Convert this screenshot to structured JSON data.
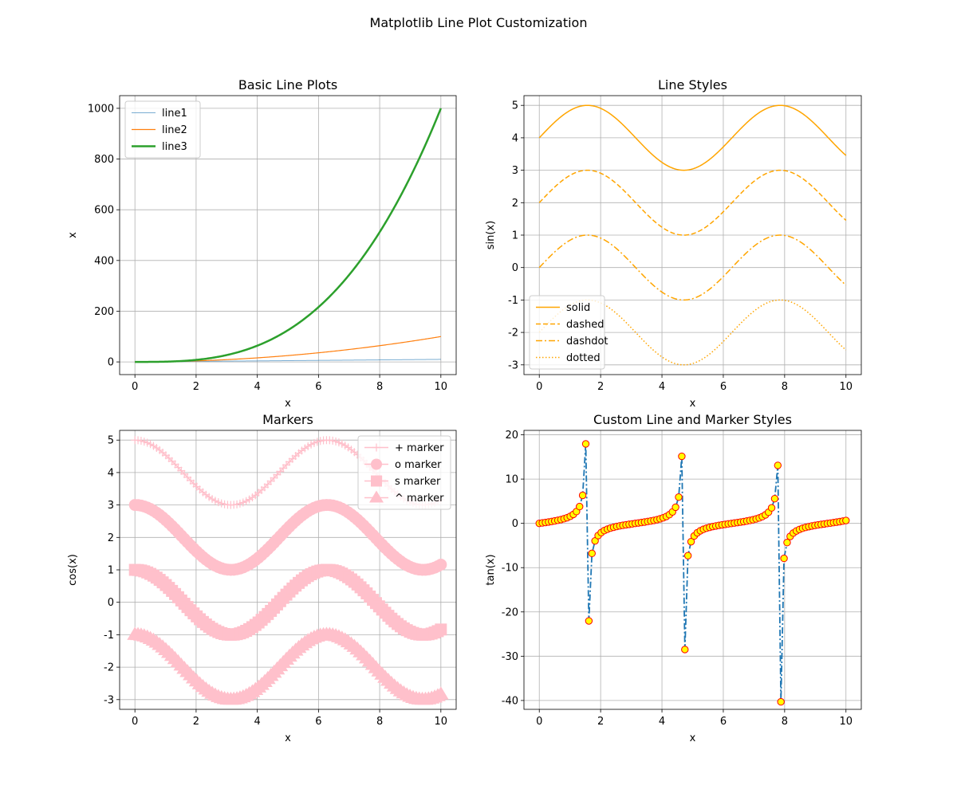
{
  "figure": {
    "title": "Matplotlib Line Plot Customization"
  },
  "chart_data": [
    {
      "type": "line",
      "title": "Basic Line Plots",
      "xlabel": "x",
      "ylabel": "x",
      "xlim": [
        -0.5,
        10.5
      ],
      "ylim": [
        -50,
        1050
      ],
      "xticks": [
        0,
        2,
        4,
        6,
        8,
        10
      ],
      "yticks": [
        0,
        200,
        400,
        600,
        800,
        1000
      ],
      "grid": true,
      "legend": "upper left",
      "x_range": [
        0,
        10
      ],
      "series": [
        {
          "name": "line1",
          "formula": "x",
          "color": "#1f77b4",
          "linewidth": 1,
          "style": "solid",
          "alpha": 0.6
        },
        {
          "name": "line2",
          "formula": "x^2",
          "color": "#ff7f0e",
          "linewidth": 1.2,
          "style": "solid"
        },
        {
          "name": "line3",
          "formula": "x^3",
          "color": "#2ca02c",
          "linewidth": 2.5,
          "style": "solid"
        }
      ]
    },
    {
      "type": "line",
      "title": "Line Styles",
      "xlabel": "x",
      "ylabel": "sin(x)",
      "xlim": [
        -0.5,
        10.5
      ],
      "ylim": [
        -3.3,
        5.3
      ],
      "xticks": [
        0,
        2,
        4,
        6,
        8,
        10
      ],
      "yticks": [
        -3,
        -2,
        -1,
        0,
        1,
        2,
        3,
        4,
        5
      ],
      "grid": true,
      "legend": "lower left",
      "x_range": [
        0,
        10
      ],
      "color": "#ffa500",
      "series": [
        {
          "name": "solid",
          "formula": "sin(x)+4",
          "style": "solid"
        },
        {
          "name": "dashed",
          "formula": "sin(x)+2",
          "style": "dashed"
        },
        {
          "name": "dashdot",
          "formula": "sin(x)",
          "style": "dashdot"
        },
        {
          "name": "dotted",
          "formula": "sin(x)-2",
          "style": "dotted"
        }
      ]
    },
    {
      "type": "line",
      "title": "Markers",
      "xlabel": "x",
      "ylabel": "cos(x)",
      "xlim": [
        -0.5,
        10.5
      ],
      "ylim": [
        -3.3,
        5.3
      ],
      "xticks": [
        0,
        2,
        4,
        6,
        8,
        10
      ],
      "yticks": [
        -3,
        -2,
        -1,
        0,
        1,
        2,
        3,
        4,
        5
      ],
      "grid": true,
      "legend": "upper right",
      "x_range": [
        0,
        10
      ],
      "color": "#ffc0cb",
      "series": [
        {
          "name": "+ marker",
          "formula": "cos(x)+4",
          "marker": "+"
        },
        {
          "name": "o marker",
          "formula": "cos(x)+2",
          "marker": "o"
        },
        {
          "name": "s marker",
          "formula": "cos(x)",
          "marker": "s"
        },
        {
          "name": "^ marker",
          "formula": "cos(x)-2",
          "marker": "^"
        }
      ]
    },
    {
      "type": "line",
      "title": "Custom Line and Marker Styles",
      "xlabel": "x",
      "ylabel": "tan(x)",
      "xlim": [
        -0.5,
        10.5
      ],
      "ylim": [
        -42,
        21
      ],
      "xticks": [
        0,
        2,
        4,
        6,
        8,
        10
      ],
      "yticks": [
        -40,
        -30,
        -20,
        -10,
        0,
        10,
        20
      ],
      "grid": true,
      "x_range": [
        0,
        10
      ],
      "series": [
        {
          "formula": "tan(x)",
          "points": 100,
          "line_color": "#1f77b4",
          "style": "dashdot",
          "marker": "o",
          "marker_face": "#ffff00",
          "marker_edge": "#ff0000"
        }
      ]
    }
  ]
}
